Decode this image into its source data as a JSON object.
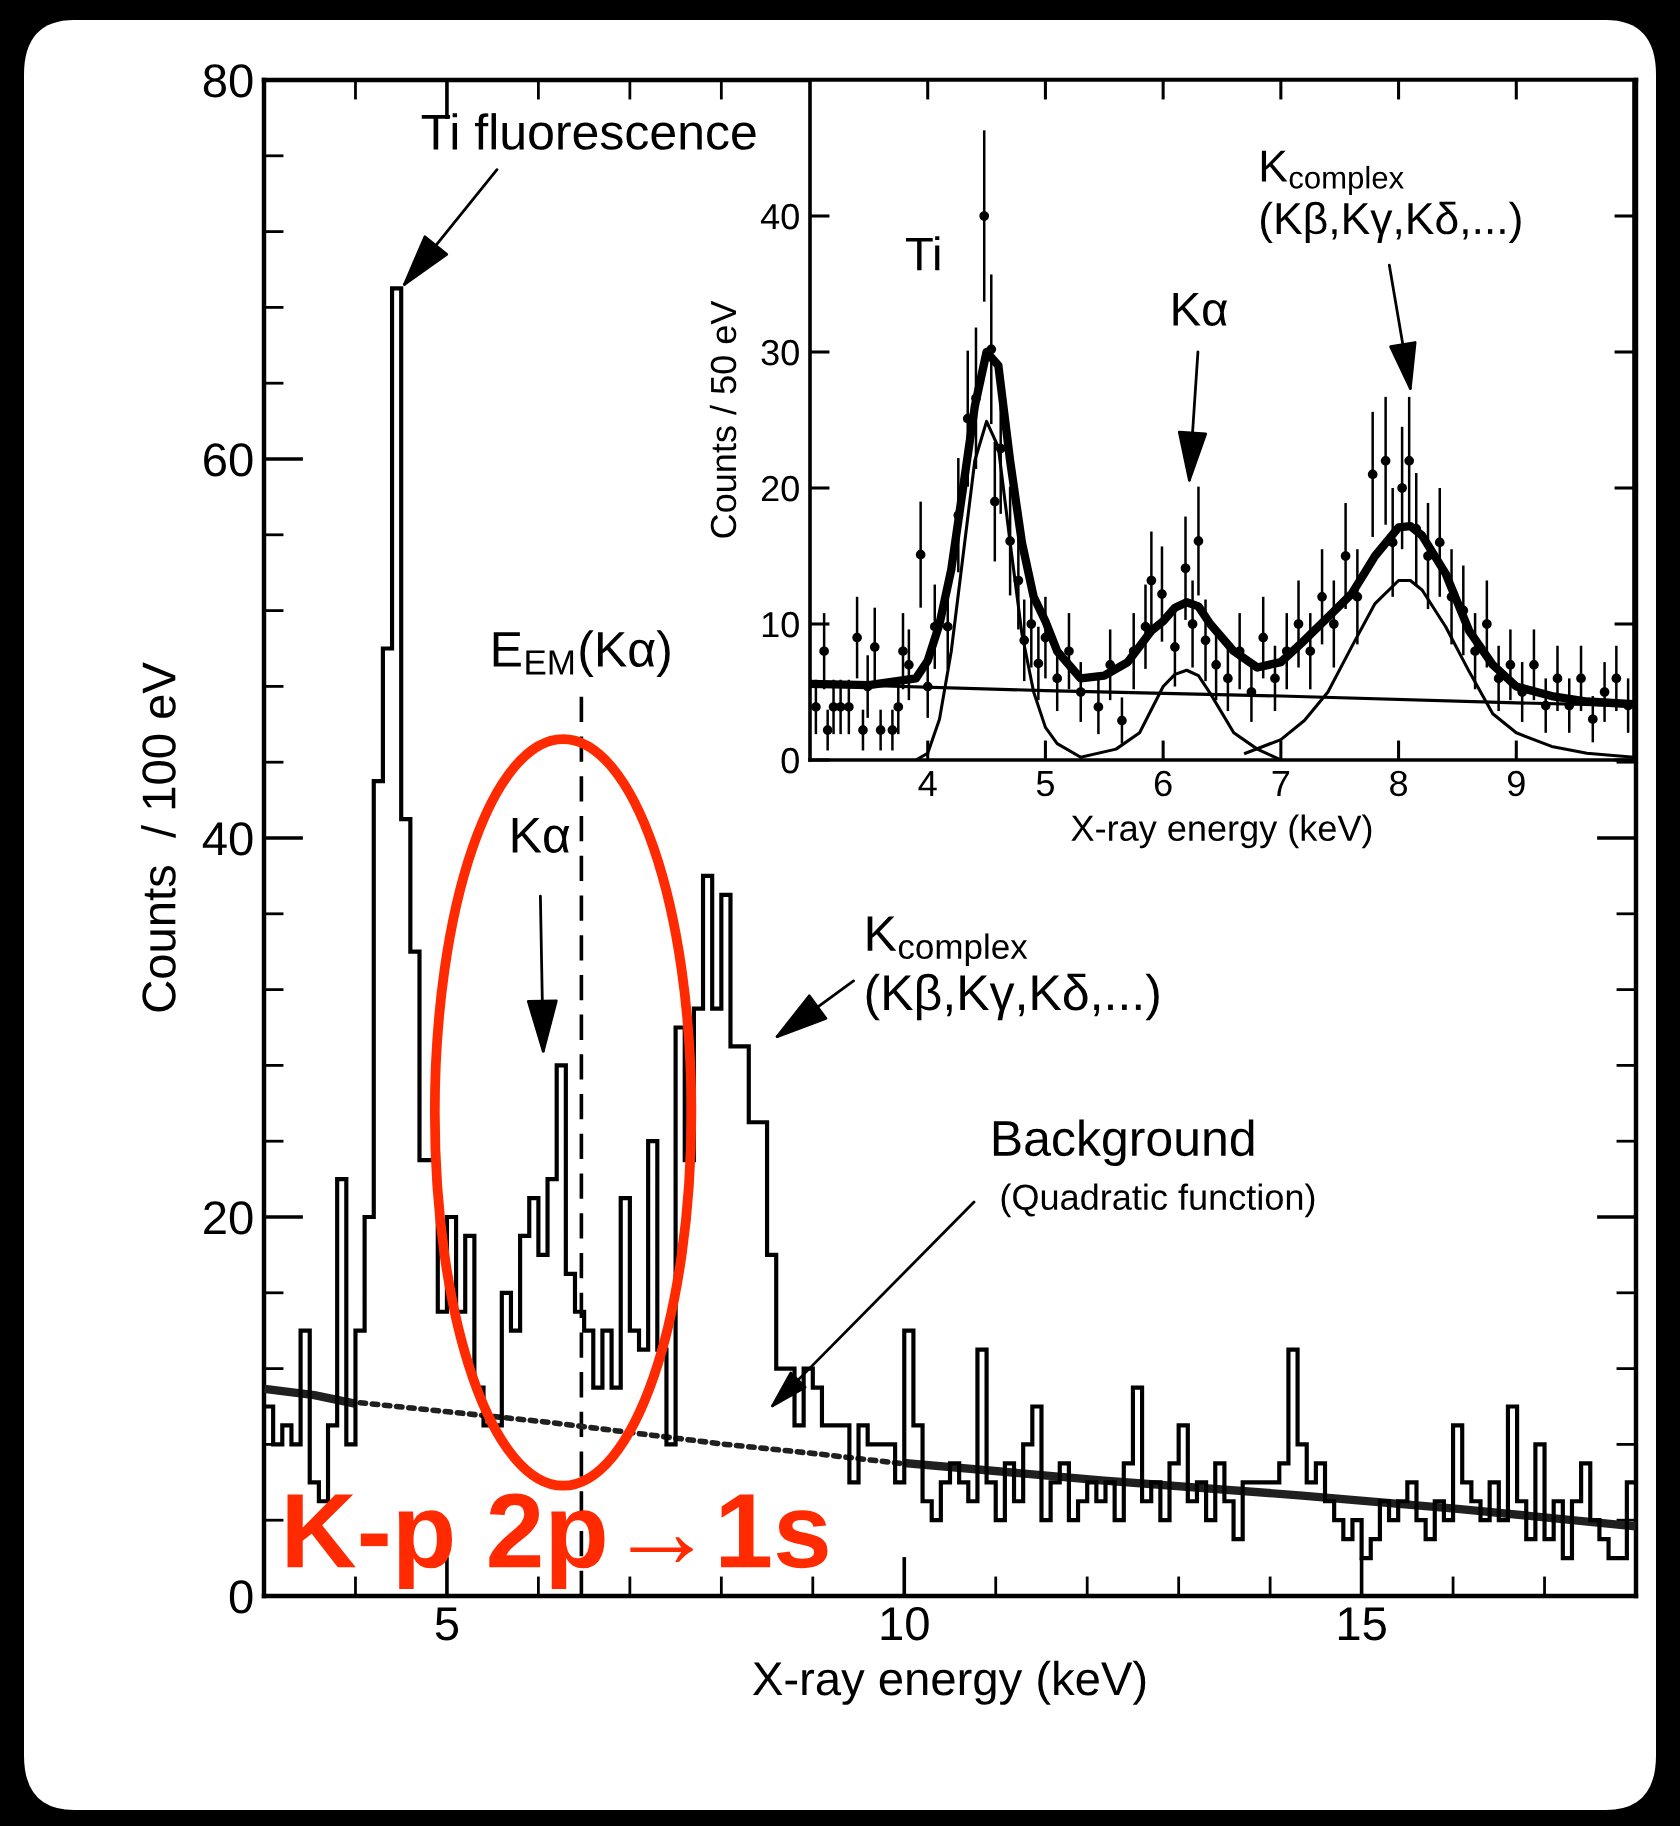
{
  "chart_data": [
    {
      "type": "scatter",
      "xlabel": "X-ray energy (keV)",
      "ylabel": "Counts / 50 eV",
      "xlim": [
        3,
        10
      ],
      "ylim": [
        0,
        50
      ],
      "xticks": [
        4,
        5,
        6,
        7,
        8,
        9
      ],
      "yticks": [
        0,
        10,
        20,
        30,
        40
      ],
      "series": [
        {
          "color": "#000000",
          "marker": "circle",
          "x": [
            3.05,
            3.12,
            3.15,
            3.2,
            3.26,
            3.33,
            3.4,
            3.45,
            3.49,
            3.55,
            3.6,
            3.7,
            3.75,
            3.79,
            3.84,
            3.94,
            4.0,
            4.06,
            4.17,
            4.26,
            4.34,
            4.41,
            4.48,
            4.54,
            4.57,
            4.62,
            4.7,
            4.77,
            4.82,
            4.88,
            4.94,
            5.0,
            5.1,
            5.2,
            5.3,
            5.45,
            5.55,
            5.65,
            5.75,
            5.85,
            5.9,
            5.99,
            6.1,
            6.19,
            6.25,
            6.3,
            6.36,
            6.45,
            6.55,
            6.65,
            6.75,
            6.85,
            6.95,
            7.05,
            7.15,
            7.25,
            7.35,
            7.45,
            7.55,
            7.65,
            7.78,
            7.89,
            7.95,
            8.03,
            8.09,
            8.15,
            8.25,
            8.35,
            8.45,
            8.55,
            8.65,
            8.75,
            8.85,
            8.95,
            9.05,
            9.15,
            9.25,
            9.35,
            9.45,
            9.55,
            9.65,
            9.75,
            9.85,
            9.95
          ],
          "values": [
            3.9,
            8.0,
            2.2,
            3.9,
            3.9,
            3.9,
            9.0,
            2.2,
            5.4,
            8.3,
            2.2,
            2.2,
            3.9,
            8.0,
            7.0,
            15.1,
            5.4,
            9.8,
            9.8,
            18.0,
            25.1,
            26.6,
            40.0,
            30.2,
            19.0,
            22.9,
            16.1,
            13.2,
            8.8,
            10.0,
            7.1,
            9,
            6,
            8,
            5,
            3.9,
            7,
            2.9,
            8,
            9.8,
            13.2,
            12.2,
            8.3,
            14.1,
            10,
            16.1,
            8.8,
            7,
            6,
            8,
            5,
            9,
            6,
            8,
            10,
            8,
            12,
            10,
            15,
            12,
            21,
            22,
            16,
            20,
            22,
            17,
            15,
            16,
            12,
            11,
            8,
            10,
            6,
            7,
            5,
            7,
            4,
            6,
            4,
            6,
            3,
            5,
            6,
            4
          ],
          "errors": [
            2,
            2.8,
            1.5,
            2,
            2,
            2,
            3,
            1.5,
            2.3,
            2.9,
            1.5,
            1.5,
            2,
            2.8,
            2.6,
            3.9,
            2.3,
            3.1,
            3.1,
            4.2,
            5,
            5.2,
            6.3,
            5.5,
            4.4,
            4.8,
            4,
            3.6,
            3,
            3.2,
            2.7,
            3,
            2.4,
            2.8,
            2.2,
            2,
            2.6,
            1.7,
            2.8,
            3.1,
            3.6,
            3.5,
            2.9,
            3.8,
            3.2,
            4,
            3,
            2.6,
            2.4,
            2.8,
            2.2,
            3,
            2.4,
            2.8,
            3.2,
            2.8,
            3.5,
            3.2,
            3.9,
            3.5,
            4.6,
            4.7,
            4,
            4.5,
            4.7,
            4.1,
            3.9,
            4,
            3.5,
            3.3,
            2.8,
            3.2,
            2.4,
            2.6,
            2.2,
            2.6,
            2,
            2.4,
            2,
            2.4,
            1.7,
            2.2,
            2.4,
            2
          ]
        },
        {
          "type": "line",
          "color": "#000000",
          "x": [
            3.0,
            3.5,
            3.9,
            4.0,
            4.1,
            4.2,
            4.3,
            4.4,
            4.5,
            4.6,
            4.7,
            4.8,
            4.9,
            5.0,
            5.1,
            5.3,
            5.5,
            5.7,
            5.9,
            6.0,
            6.1,
            6.2,
            6.3,
            6.4,
            6.6,
            6.8,
            7.0,
            7.2,
            7.4,
            7.6,
            7.8,
            8.0,
            8.1,
            8.2,
            8.4,
            8.6,
            8.8,
            9.0,
            9.3,
            9.6,
            10.0
          ],
          "values": [
            5.6,
            5.5,
            6.0,
            7.3,
            10,
            14,
            20,
            26,
            30,
            29,
            22,
            16,
            12,
            10.2,
            8,
            6,
            6.2,
            7.2,
            9.5,
            10.2,
            11.2,
            11.6,
            11.3,
            10,
            8,
            6.8,
            7.2,
            8.8,
            10.5,
            12.2,
            15,
            17.1,
            17.2,
            16.5,
            13.7,
            9.5,
            7,
            5.4,
            4.7,
            4.3,
            4.1
          ]
        },
        {
          "type": "line",
          "color": "#000000",
          "x": [
            3,
            5,
            7,
            9,
            10
          ],
          "values": [
            5.6,
            5.1,
            4.7,
            4.2,
            4.0
          ]
        },
        {
          "type": "line",
          "color": "#000000",
          "x": [
            3.9,
            4.0,
            4.1,
            4.2,
            4.3,
            4.4,
            4.5,
            4.6,
            4.7,
            4.8,
            4.9,
            5.0,
            5.1,
            5.3
          ],
          "values": [
            0,
            0.5,
            3,
            8,
            15,
            22,
            24.9,
            23,
            16,
            9.3,
            5,
            2.4,
            1.2,
            0.2
          ]
        },
        {
          "type": "line",
          "color": "#000000",
          "x": [
            5.3,
            5.6,
            5.8,
            6.0,
            6.1,
            6.2,
            6.3,
            6.4,
            6.6,
            6.8,
            7.0
          ],
          "values": [
            0.2,
            0.8,
            2,
            5.4,
            6.3,
            6.6,
            6.2,
            4.9,
            2,
            0.8,
            0
          ]
        },
        {
          "type": "line",
          "color": "#000000",
          "x": [
            6.7,
            7.0,
            7.2,
            7.4,
            7.6,
            7.8,
            8.0,
            8.1,
            8.2,
            8.4,
            8.6,
            8.8,
            9.0,
            9.3,
            9.6,
            10.0
          ],
          "values": [
            0.5,
            1.5,
            2.9,
            5,
            8.3,
            11.5,
            13.2,
            13.2,
            12.5,
            9.8,
            6.5,
            3.4,
            2,
            1,
            0.5,
            0.2
          ]
        }
      ],
      "annotations": [
        "Ti",
        {
          "text": "Kα",
          "x": 6.22,
          "y": 20.2
        },
        "K$_{complex}$\n(Kβ,Kγ,Kδ,...)"
      ]
    },
    {
      "type": "histogram",
      "xlabel": "X-ray energy (keV)",
      "ylabel": "Counts  / 100 eV",
      "xlim": [
        3,
        18
      ],
      "ylim": [
        0,
        80
      ],
      "color": "#000000",
      "xticks": [
        {
          "value": 4,
          "label": null
        },
        5,
        {
          "value": 6,
          "label": null
        },
        {
          "value": 7,
          "label": null
        },
        {
          "value": 8,
          "label": null
        },
        {
          "value": 9,
          "label": null
        },
        10,
        {
          "value": 11,
          "label": null
        },
        {
          "value": 12,
          "label": null
        },
        {
          "value": 13,
          "label": null
        },
        {
          "value": 14,
          "label": null
        },
        15,
        {
          "value": 16,
          "label": null
        },
        {
          "value": 17,
          "label": null
        }
      ],
      "yticks": [
        0,
        {
          "value": 4,
          "label": null
        },
        {
          "value": 8,
          "label": null
        },
        {
          "value": 12,
          "label": null
        },
        {
          "value": 16,
          "label": null
        },
        20,
        {
          "value": 24,
          "label": null
        },
        {
          "value": 28,
          "label": null
        },
        {
          "value": 32,
          "label": null
        },
        {
          "value": 36,
          "label": null
        },
        40,
        {
          "value": 44,
          "label": null
        },
        {
          "value": 48,
          "label": null
        },
        {
          "value": 52,
          "label": null
        },
        {
          "value": 56,
          "label": null
        },
        60,
        {
          "value": 64,
          "label": null
        },
        {
          "value": 68,
          "label": null
        },
        {
          "value": 72,
          "label": null
        },
        {
          "value": 76,
          "label": null
        },
        80
      ],
      "bins": [
        3.0,
        3.1,
        3.2,
        3.3,
        3.4,
        3.5,
        3.6,
        3.7,
        3.8,
        3.9,
        4.0,
        4.1,
        4.2,
        4.3,
        4.4,
        4.5,
        4.6,
        4.7,
        4.8,
        4.9,
        5.0,
        5.1,
        5.2,
        5.3,
        5.4,
        5.5,
        5.6,
        5.7,
        5.8,
        5.9,
        6.0,
        6.1,
        6.2,
        6.3,
        6.4,
        6.5,
        6.6,
        6.7,
        6.8,
        6.9,
        7.0,
        7.1,
        7.2,
        7.3,
        7.4,
        7.5,
        7.6,
        7.7,
        7.8,
        7.9,
        8.0,
        8.1,
        8.2,
        8.3,
        8.4,
        8.5,
        8.6,
        8.7,
        8.8,
        8.9,
        9.0,
        9.1,
        9.2,
        9.3,
        9.4,
        9.5,
        9.6,
        9.7,
        9.8,
        9.9,
        10.0,
        10.1,
        10.2,
        10.3,
        10.4,
        10.5,
        10.6,
        10.7,
        10.8,
        10.9,
        11.0,
        11.1,
        11.2,
        11.3,
        11.4,
        11.5,
        11.6,
        11.7,
        11.8,
        11.9,
        12.0,
        12.1,
        12.2,
        12.3,
        12.4,
        12.5,
        12.6,
        12.7,
        12.8,
        12.9,
        13.0,
        13.1,
        13.2,
        13.3,
        13.4,
        13.5,
        13.6,
        13.7,
        13.8,
        13.9,
        14.0,
        14.1,
        14.2,
        14.3,
        14.4,
        14.5,
        14.6,
        14.7,
        14.8,
        14.9,
        15.0,
        15.1,
        15.2,
        15.3,
        15.4,
        15.5,
        15.6,
        15.7,
        15.8,
        15.9,
        16.0,
        16.1,
        16.2,
        16.3,
        16.4,
        16.5,
        16.6,
        16.7,
        16.8,
        16.9,
        17.0,
        17.1,
        17.2,
        17.3,
        17.4,
        17.5,
        17.6,
        17.7,
        17.8,
        17.9,
        18.0
      ],
      "values": [
        10,
        8,
        9,
        8,
        14,
        6,
        5,
        9,
        22,
        8,
        14,
        20,
        43,
        50,
        69,
        41,
        34,
        23,
        23,
        15,
        20,
        15,
        19,
        11,
        9,
        9,
        16,
        14,
        19,
        21,
        18,
        22,
        28,
        17,
        15,
        14,
        11,
        14,
        11,
        21,
        14,
        13,
        24,
        13,
        8,
        30,
        23,
        31,
        38,
        31,
        37,
        29,
        29,
        25,
        25,
        18,
        12,
        12,
        9,
        12,
        11,
        9,
        9,
        9,
        6,
        9,
        8,
        8,
        8,
        6,
        14,
        9,
        5,
        4,
        6,
        7,
        6,
        5,
        13,
        6,
        4,
        7,
        5,
        8,
        10,
        4,
        6,
        7,
        4,
        5,
        6,
        5,
        6,
        4,
        7,
        11,
        5,
        6,
        4,
        7,
        9,
        5,
        6,
        4,
        7,
        5,
        3,
        6,
        6,
        6,
        6,
        7,
        13,
        8,
        6,
        7,
        5,
        4,
        3,
        4,
        2,
        3,
        5,
        4,
        5,
        6,
        4,
        3,
        5,
        4,
        9,
        6,
        5,
        4,
        6,
        4,
        10,
        5,
        3,
        8,
        3,
        5,
        2,
        5,
        7,
        4,
        3,
        2,
        2,
        6
      ],
      "series": [
        {
          "type": "line",
          "color": "#202020",
          "line_style": "solid",
          "x": [
            3.05,
            3.55,
            3.95
          ],
          "values": [
            10.9,
            10.6,
            10.2
          ]
        },
        {
          "type": "line",
          "color": "#202020",
          "line_style": "dotted",
          "x": [
            4.05,
            5.05,
            6.05,
            7.05,
            8.05,
            9.05,
            9.95
          ],
          "values": [
            10.2,
            9.7,
            9.2,
            8.6,
            8.0,
            7.5,
            7.0
          ]
        },
        {
          "type": "line",
          "color": "#202020",
          "line_style": "solid",
          "x": [
            10.05,
            12.15,
            14.35,
            16.05,
            17.95
          ],
          "values": [
            7.0,
            6.1,
            5.3,
            4.6,
            3.7
          ]
        }
      ],
      "ref_lines": [
        {
          "axis": "x",
          "value": 6.47,
          "label": "E$_{EM}$(Kα)",
          "line_style": "dashed",
          "color": "#000000"
        }
      ],
      "annotations": [
        {
          "text": "Ti fluorescence",
          "x": 4.5,
          "y": 69
        },
        "Kα",
        "K$_{complex}$\n(Kβ,Kγ,Kδ,...)",
        "Background",
        "(Quadratic function)",
        "K-p 2p→1s"
      ]
    }
  ]
}
